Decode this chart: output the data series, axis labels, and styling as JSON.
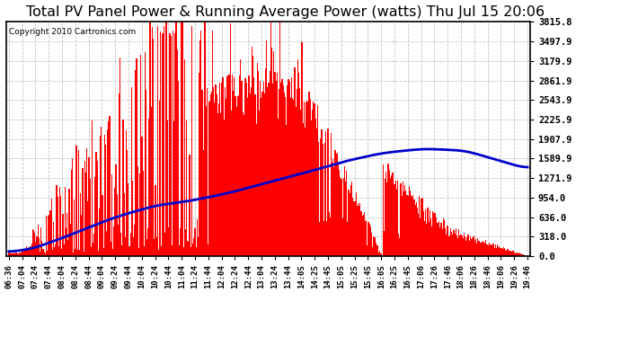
{
  "title": "Total PV Panel Power & Running Average Power (watts) Thu Jul 15 20:06",
  "copyright": "Copyright 2010 Cartronics.com",
  "yticks": [
    0.0,
    318.0,
    636.0,
    954.0,
    1271.9,
    1589.9,
    1907.9,
    2225.9,
    2543.9,
    2861.9,
    3179.9,
    3497.9,
    3815.8
  ],
  "ymax": 3815.8,
  "ymin": 0.0,
  "bg_color": "#ffffff",
  "plot_bg_color": "#ffffff",
  "bar_color": "#ff0000",
  "line_color": "#0000cc",
  "grid_color": "#bbbbbb",
  "title_fontsize": 11.5,
  "xtick_labels": [
    "06:36",
    "07:04",
    "07:24",
    "07:44",
    "08:04",
    "08:24",
    "08:44",
    "09:04",
    "09:24",
    "09:44",
    "10:04",
    "10:24",
    "10:44",
    "11:04",
    "11:24",
    "11:44",
    "12:04",
    "12:24",
    "12:44",
    "13:04",
    "13:24",
    "13:44",
    "14:05",
    "14:25",
    "14:45",
    "15:05",
    "15:25",
    "15:45",
    "16:05",
    "16:25",
    "16:45",
    "17:06",
    "17:26",
    "17:46",
    "18:06",
    "18:26",
    "18:46",
    "19:06",
    "19:26",
    "19:46"
  ],
  "ra_keypoints_x": [
    0.0,
    0.05,
    0.12,
    0.2,
    0.28,
    0.35,
    0.42,
    0.5,
    0.58,
    0.65,
    0.72,
    0.8,
    0.88,
    1.0
  ],
  "ra_keypoints_y": [
    60,
    130,
    350,
    620,
    820,
    900,
    1020,
    1200,
    1380,
    1550,
    1680,
    1750,
    1720,
    1420
  ]
}
